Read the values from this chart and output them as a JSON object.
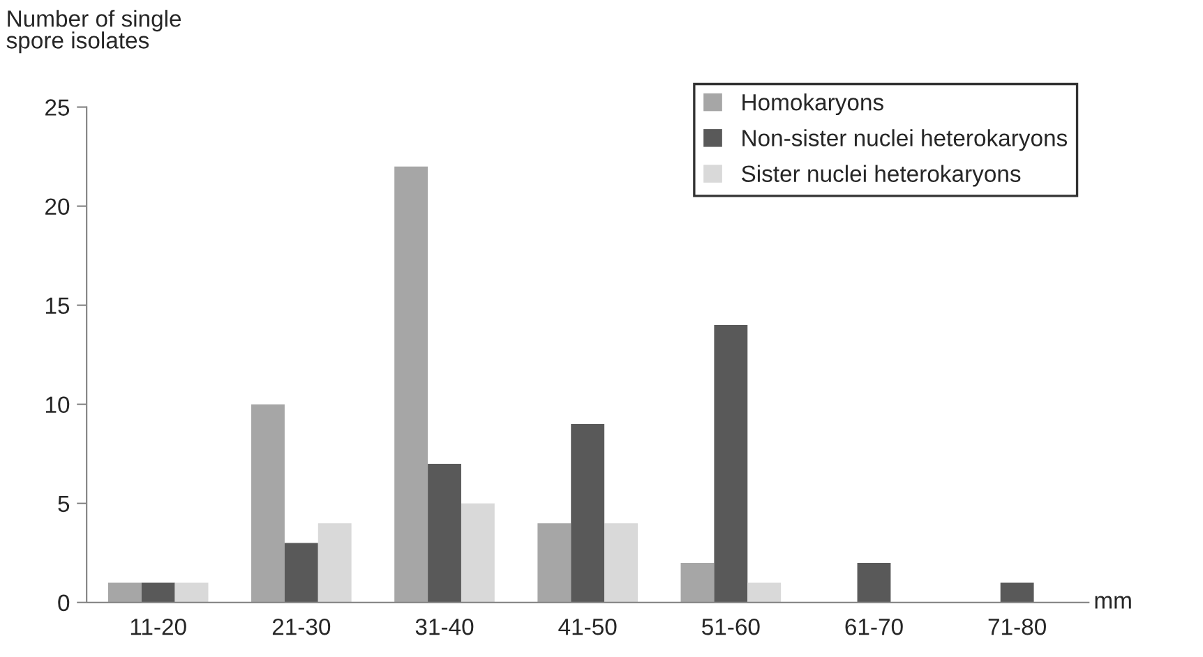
{
  "chart_data": {
    "type": "bar",
    "ylabel": "Number of single\nspore isolates",
    "xlabel": "mm",
    "categories": [
      "11-20",
      "21-30",
      "31-40",
      "41-50",
      "51-60",
      "61-70",
      "71-80"
    ],
    "series": [
      {
        "name": "Homokaryons",
        "color": "#a6a6a6",
        "values": [
          1,
          10,
          22,
          4,
          2,
          0,
          0
        ]
      },
      {
        "name": "Non-sister nuclei heterokaryons",
        "color": "#595959",
        "values": [
          1,
          3,
          7,
          9,
          14,
          2,
          1
        ]
      },
      {
        "name": "Sister nuclei heterokaryons",
        "color": "#d9d9d9",
        "values": [
          1,
          4,
          5,
          4,
          1,
          0,
          0
        ]
      }
    ],
    "ylim": [
      0,
      25
    ],
    "yticks": [
      0,
      5,
      10,
      15,
      20,
      25
    ],
    "grid": false,
    "legend": "top right"
  }
}
